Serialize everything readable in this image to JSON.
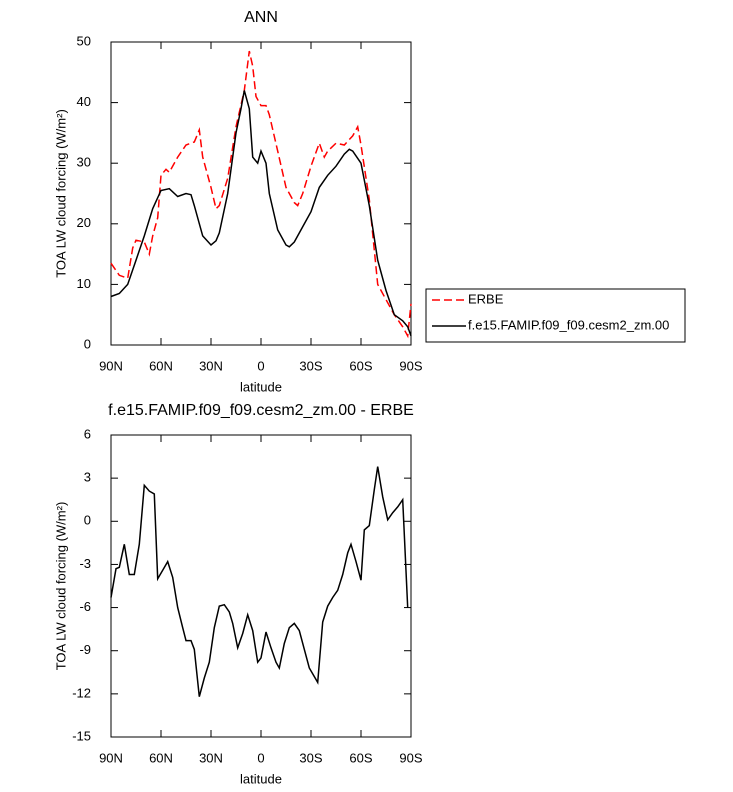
{
  "chart_data": [
    {
      "type": "line",
      "title": "ANN",
      "x_label": "latitude",
      "y_label": "TOA LW cloud forcing (W/m²)",
      "xlim": [
        90,
        -90
      ],
      "xticks": [
        {
          "value": 90,
          "label": "90N"
        },
        {
          "value": 60,
          "label": "60N"
        },
        {
          "value": 30,
          "label": "30N"
        },
        0,
        {
          "value": -30,
          "label": "30S"
        },
        {
          "value": -60,
          "label": "60S"
        },
        {
          "value": -90,
          "label": "90S"
        }
      ],
      "ylim": [
        0,
        50
      ],
      "yticks": [
        0,
        10,
        20,
        30,
        40,
        50
      ],
      "legend": "right",
      "series": [
        {
          "name": "ERBE",
          "color": "#ff0000",
          "line_style": "dashed",
          "x": [
            90,
            85,
            80,
            77,
            75,
            70,
            67,
            65,
            62,
            60,
            57,
            55,
            50,
            45,
            40,
            37,
            35,
            30,
            27,
            25,
            20,
            15,
            10,
            7,
            5,
            3,
            0,
            -3,
            -5,
            -10,
            -15,
            -20,
            -22,
            -25,
            -30,
            -35,
            -38,
            -40,
            -45,
            -50,
            -55,
            -58,
            -60,
            -65,
            -70,
            -75,
            -80,
            -85,
            -88,
            -90
          ],
          "values": [
            13.5,
            11.5,
            11,
            16,
            17.3,
            17,
            15,
            18,
            21,
            28,
            29,
            28.5,
            31,
            33,
            33.5,
            35.5,
            31,
            26,
            22.5,
            23,
            27.5,
            36,
            42,
            48.5,
            46,
            41,
            39.5,
            39.5,
            38,
            32,
            26,
            23.5,
            23,
            25,
            29.5,
            33.3,
            31,
            32,
            33.3,
            33,
            34.5,
            36,
            33,
            24,
            10,
            7.5,
            5,
            3,
            1.5,
            6.8
          ]
        },
        {
          "name": "f.e15.FAMIP.f09_f09.cesm2_zm.00",
          "color": "#000000",
          "line_style": "solid",
          "x": [
            90,
            85,
            80,
            75,
            70,
            65,
            60,
            55,
            50,
            45,
            42,
            40,
            35,
            30,
            27,
            25,
            20,
            15,
            12,
            10,
            7,
            5,
            2,
            0,
            -3,
            -5,
            -10,
            -15,
            -17,
            -20,
            -25,
            -30,
            -35,
            -40,
            -45,
            -50,
            -53,
            -55,
            -60,
            -65,
            -70,
            -75,
            -80,
            -85,
            -88,
            -90
          ],
          "values": [
            8,
            8.5,
            10,
            14,
            18,
            22.5,
            25.5,
            25.8,
            24.5,
            25,
            24.8,
            23,
            18,
            16.5,
            17.2,
            18.5,
            25,
            35,
            39,
            42,
            39,
            31,
            30,
            32,
            30,
            25,
            19,
            16.5,
            16.2,
            17,
            19.5,
            22,
            26,
            28,
            29.5,
            31.5,
            32.3,
            32,
            30,
            23,
            14,
            9,
            5,
            4,
            3,
            1.5
          ]
        }
      ]
    },
    {
      "type": "line",
      "title": "f.e15.FAMIP.f09_f09.cesm2_zm.00 - ERBE",
      "x_label": "latitude",
      "y_label": "TOA LW cloud forcing (W/m²)",
      "xlim": [
        90,
        -90
      ],
      "xticks": [
        {
          "value": 90,
          "label": "90N"
        },
        {
          "value": 60,
          "label": "60N"
        },
        {
          "value": 30,
          "label": "30N"
        },
        0,
        {
          "value": -30,
          "label": "30S"
        },
        {
          "value": -60,
          "label": "60S"
        },
        {
          "value": -90,
          "label": "90S"
        }
      ],
      "ylim": [
        -15,
        6
      ],
      "yticks": [
        -15,
        -12,
        -9,
        -6,
        -3,
        0,
        3,
        6
      ],
      "color": "#000000",
      "x": [
        90,
        87,
        85,
        82,
        79,
        76,
        73,
        70,
        67,
        64,
        62,
        59,
        56,
        53,
        50,
        47,
        45,
        42,
        40,
        37,
        34,
        31,
        28,
        25,
        22,
        19,
        17,
        14,
        11,
        8,
        5,
        2,
        0,
        -3,
        -6,
        -9,
        -11,
        -14,
        -17,
        -20,
        -23,
        -26,
        -29,
        -34,
        -37,
        -40,
        -43,
        -46,
        -49,
        -52,
        -54,
        -57,
        -60,
        -62,
        -65,
        -68,
        -70,
        -73,
        -76,
        -79,
        -82,
        -85,
        -88
      ],
      "values": [
        -5.3,
        -3.3,
        -3.2,
        -1.6,
        -3.7,
        -3.7,
        -1.6,
        2.5,
        2.1,
        1.9,
        -4.0,
        -3.4,
        -2.8,
        -3.9,
        -6.0,
        -7.4,
        -8.3,
        -8.3,
        -8.9,
        -12.2,
        -10.9,
        -9.8,
        -7.4,
        -5.9,
        -5.8,
        -6.3,
        -7.1,
        -8.8,
        -7.8,
        -6.5,
        -7.6,
        -9.8,
        -9.5,
        -7.7,
        -8.8,
        -9.8,
        -10.2,
        -8.5,
        -7.4,
        -7.1,
        -7.6,
        -8.9,
        -10.2,
        -11.2,
        -7.0,
        -5.9,
        -5.3,
        -4.8,
        -3.7,
        -2.2,
        -1.6,
        -2.8,
        -4.1,
        -0.6,
        -0.3,
        2.2,
        3.8,
        1.7,
        0.1,
        0.6,
        1.0,
        1.5,
        -6.0
      ]
    }
  ]
}
